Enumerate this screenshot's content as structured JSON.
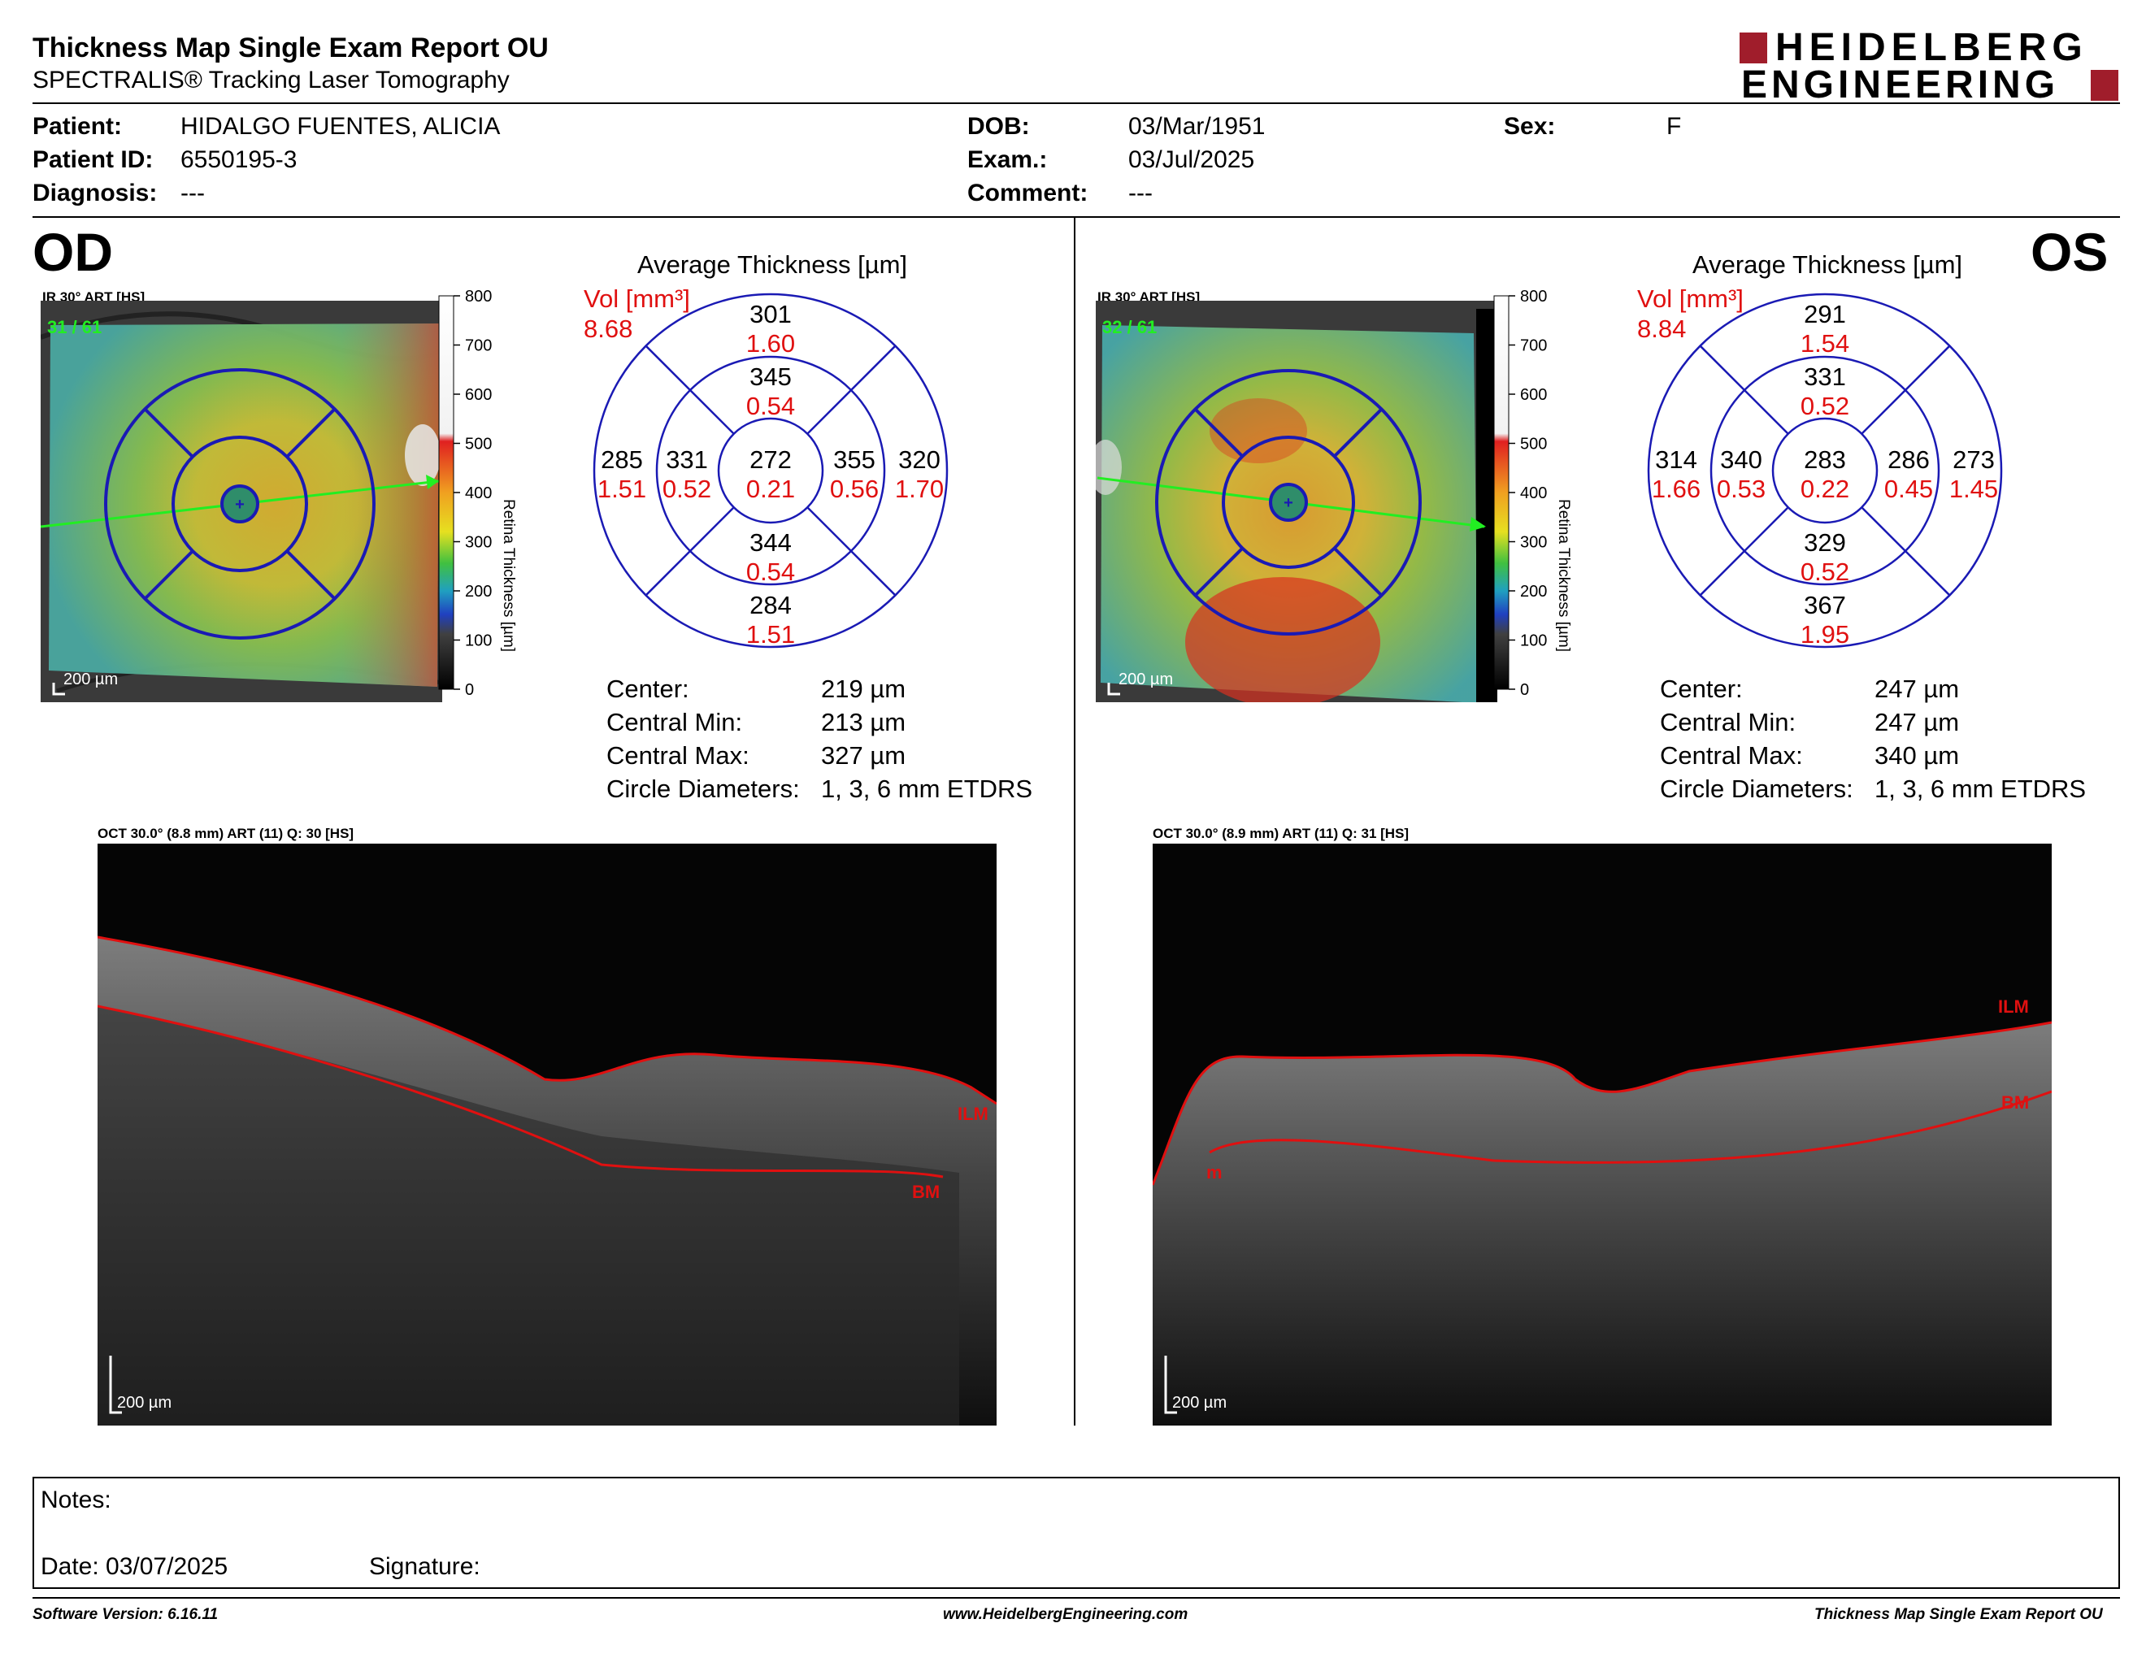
{
  "header": {
    "title": "Thickness Map Single Exam Report OU",
    "subtitle": "SPECTRALIS® Tracking Laser Tomography",
    "logo_line1": "HEIDELBERG",
    "logo_line2": "ENGINEERING"
  },
  "patient": {
    "patient_label": "Patient:",
    "patient_value": "HIDALGO FUENTES, ALICIA",
    "id_label": "Patient ID:",
    "id_value": "6550195-3",
    "diagnosis_label": "Diagnosis:",
    "diagnosis_value": "---",
    "dob_label": "DOB:",
    "dob_value": "03/Mar/1951",
    "exam_label": "Exam.:",
    "exam_value": "03/Jul/2025",
    "comment_label": "Comment:",
    "comment_value": "---",
    "sex_label": "Sex:",
    "sex_value": "F"
  },
  "colors": {
    "ring": "#1a1ab4",
    "volume": "#e01010",
    "axis": "#000000"
  },
  "od": {
    "eye": "OD",
    "ir_label": "IR 30° ART [HS]",
    "ir_counter": "31 / 61",
    "ir_scale": "200 µm",
    "colorbar_ticks": [
      "800",
      "700",
      "600",
      "500",
      "400",
      "300",
      "200",
      "100",
      "0"
    ],
    "colorbar_label": "Retina  Thickness [µm]",
    "avg_title": "Average Thickness [µm]",
    "vol_label": "Vol [mm³]",
    "vol_total": "8.68",
    "grid": {
      "center": {
        "t": "272",
        "v": "0.21"
      },
      "inner_superior": {
        "t": "345",
        "v": "0.54"
      },
      "inner_inferior": {
        "t": "344",
        "v": "0.54"
      },
      "inner_temporal": {
        "t": "331",
        "v": "0.52"
      },
      "inner_nasal": {
        "t": "355",
        "v": "0.56"
      },
      "outer_superior": {
        "t": "301",
        "v": "1.60"
      },
      "outer_inferior": {
        "t": "284",
        "v": "1.51"
      },
      "outer_temporal": {
        "t": "285",
        "v": "1.51"
      },
      "outer_nasal": {
        "t": "320",
        "v": "1.70"
      }
    },
    "stats": [
      {
        "label": "Center:",
        "value": "219 µm"
      },
      {
        "label": "Central Min:",
        "value": "213 µm"
      },
      {
        "label": "Central Max:",
        "value": "327 µm"
      },
      {
        "label": "Circle Diameters:",
        "value": "1, 3, 6 mm ETDRS"
      }
    ],
    "oct_label": "OCT 30.0° (8.8 mm) ART (11) Q: 30 [HS]",
    "oct_scale": "200 µm",
    "ilm": "ILM",
    "bm": "BM"
  },
  "os": {
    "eye": "OS",
    "ir_label": "IR 30° ART [HS]",
    "ir_counter": "32 / 61",
    "ir_scale": "200 µm",
    "colorbar_ticks": [
      "800",
      "700",
      "600",
      "500",
      "400",
      "300",
      "200",
      "100",
      "0"
    ],
    "colorbar_label": "Retina  Thickness [µm]",
    "avg_title": "Average Thickness [µm]",
    "vol_label": "Vol [mm³]",
    "vol_total": "8.84",
    "grid": {
      "center": {
        "t": "283",
        "v": "0.22"
      },
      "inner_superior": {
        "t": "331",
        "v": "0.52"
      },
      "inner_inferior": {
        "t": "329",
        "v": "0.52"
      },
      "inner_temporal": {
        "t": "286",
        "v": "0.45"
      },
      "inner_nasal": {
        "t": "340",
        "v": "0.53"
      },
      "outer_superior": {
        "t": "291",
        "v": "1.54"
      },
      "outer_inferior": {
        "t": "367",
        "v": "1.95"
      },
      "outer_temporal": {
        "t": "273",
        "v": "1.45"
      },
      "outer_nasal": {
        "t": "314",
        "v": "1.66"
      }
    },
    "stats": [
      {
        "label": "Center:",
        "value": "247 µm"
      },
      {
        "label": "Central Min:",
        "value": "247 µm"
      },
      {
        "label": "Central Max:",
        "value": "340 µm"
      },
      {
        "label": "Circle Diameters:",
        "value": "1, 3, 6 mm ETDRS"
      }
    ],
    "oct_label": "OCT 30.0° (8.9 mm) ART (11) Q: 31 [HS]",
    "oct_scale": "200 µm",
    "ilm": "ILM",
    "bm": "BM",
    "extra_label": "m"
  },
  "notes": {
    "notes_label": "Notes:",
    "date_label": "Date: 03/07/2025",
    "signature_label": "Signature:"
  },
  "footer": {
    "left": "Software Version: 6.16.11",
    "center": "www.HeidelbergEngineering.com",
    "right": "Thickness Map Single Exam Report OU"
  }
}
